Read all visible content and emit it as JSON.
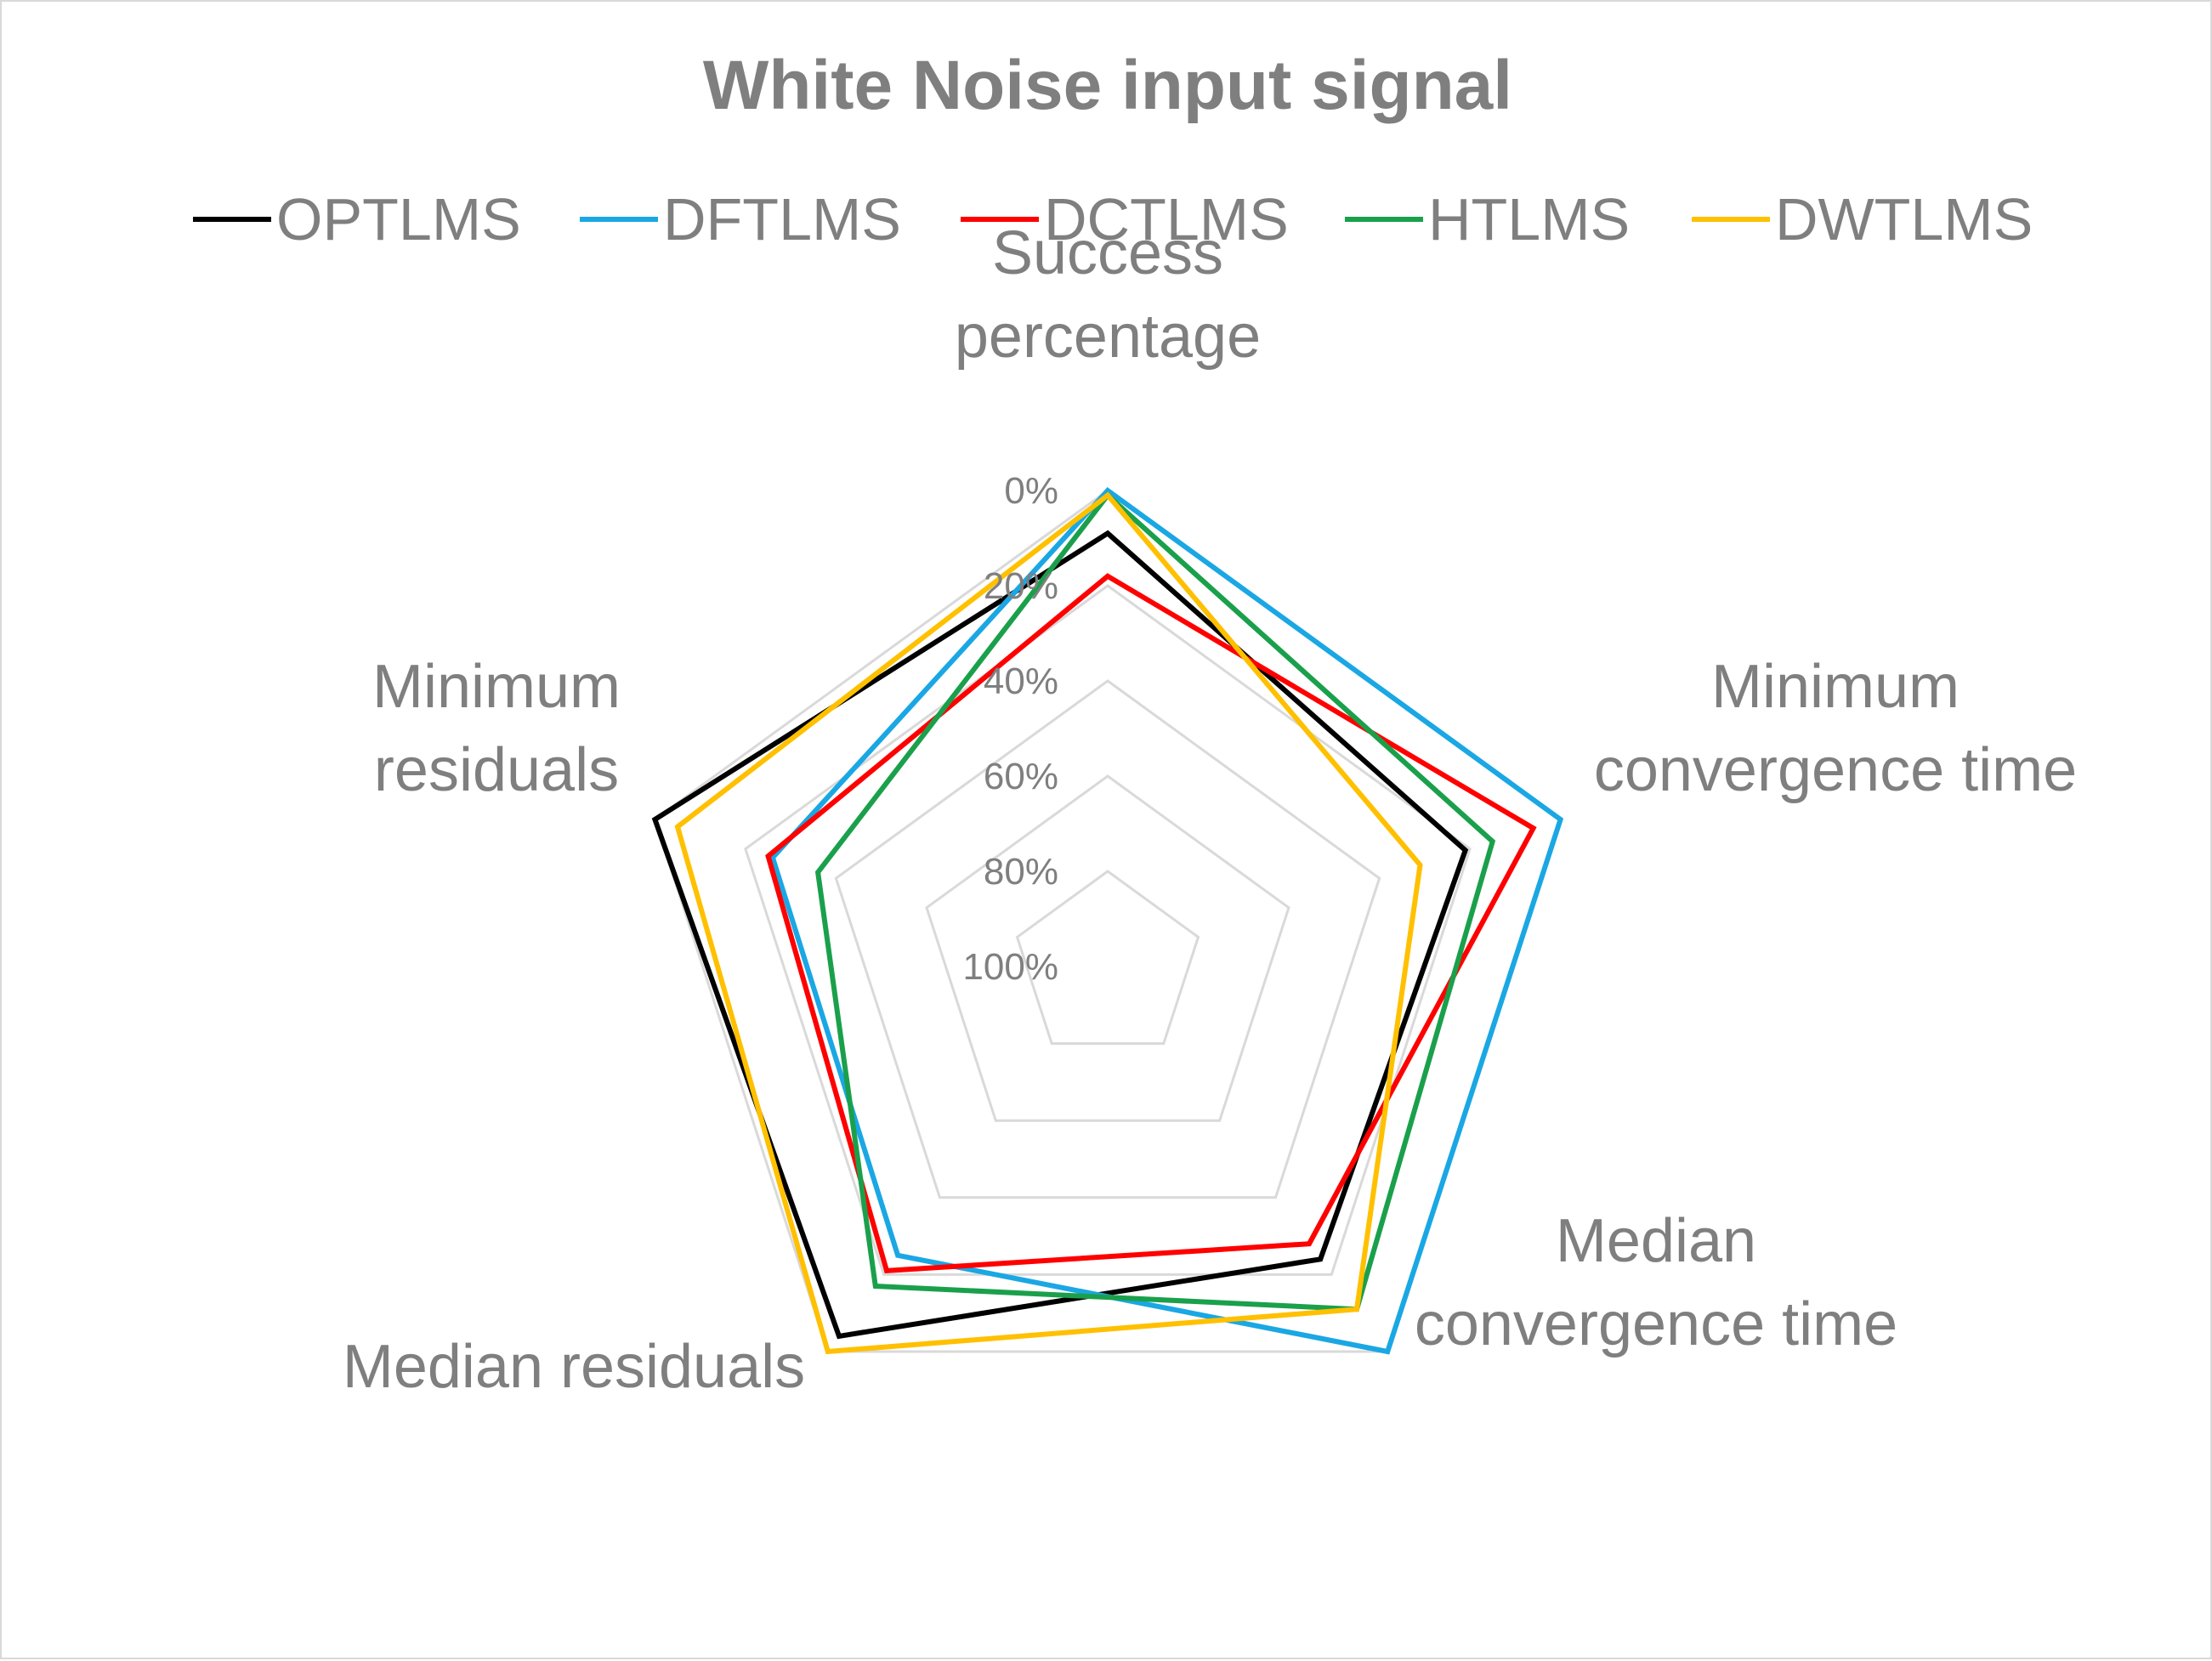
{
  "chart_data": {
    "type": "radar",
    "title": "White Noise input signal",
    "axes": [
      [
        "Success",
        "percentage"
      ],
      [
        "Minimum",
        "convergence time"
      ],
      [
        "Median",
        "convergence time"
      ],
      [
        "Median residuals"
      ],
      [
        "Minimum",
        "residuals"
      ]
    ],
    "scale": {
      "reversed": true,
      "min": 0,
      "max": 100,
      "ticks": [
        "0%",
        "20%",
        "40%",
        "60%",
        "80%",
        "100%"
      ]
    },
    "grid": true,
    "legend_position": "top",
    "series": [
      {
        "name": "OPTLMS",
        "color": "#000000",
        "values": [
          9,
          21,
          24,
          4,
          0
        ]
      },
      {
        "name": "DFTLMS",
        "color": "#1aa7e4",
        "values": [
          0,
          0,
          0,
          25,
          26
        ]
      },
      {
        "name": "DCTLMS",
        "color": "#ff0000",
        "values": [
          18,
          6,
          28,
          21,
          25
        ]
      },
      {
        "name": "HTLMS",
        "color": "#1aa04b",
        "values": [
          1,
          15,
          11,
          17,
          36
        ]
      },
      {
        "name": "DWTLMS",
        "color": "#ffc000",
        "values": [
          1,
          31,
          11,
          0,
          5
        ]
      }
    ]
  }
}
